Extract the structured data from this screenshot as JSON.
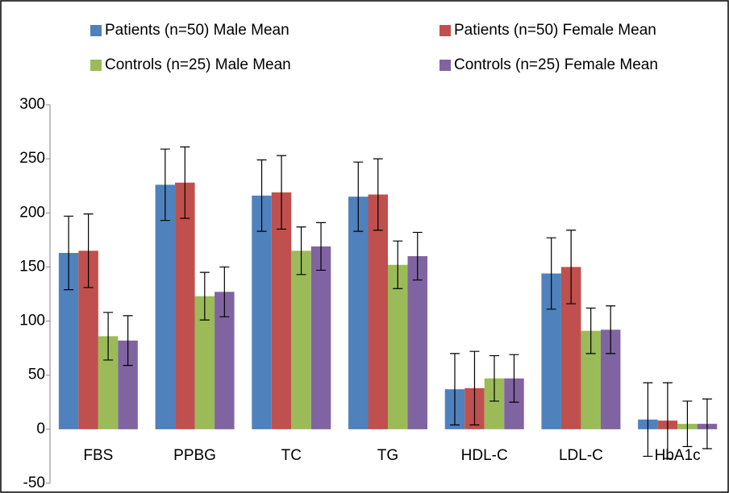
{
  "chart_data": {
    "type": "bar",
    "categories": [
      "FBS",
      "PPBG",
      "TC",
      "TG",
      "HDL-C",
      "LDL-C",
      "HbA1c"
    ],
    "series": [
      {
        "name": "Patients (n=50)  Male  Mean",
        "color": "#4f81bd",
        "values": [
          163,
          226,
          216,
          215,
          37,
          144,
          9
        ],
        "errors": [
          34,
          33,
          33,
          32,
          33,
          33,
          34
        ]
      },
      {
        "name": "Patients (n=50) Female  Mean",
        "color": "#c0504d",
        "values": [
          165,
          228,
          219,
          217,
          38,
          150,
          8
        ],
        "errors": [
          34,
          33,
          34,
          33,
          34,
          34,
          35
        ]
      },
      {
        "name": "Controls (n=25)  Male  Mean",
        "color": "#9bbb59",
        "values": [
          86,
          123,
          165,
          152,
          47,
          91,
          5
        ],
        "errors": [
          22,
          22,
          22,
          22,
          21,
          21,
          21
        ]
      },
      {
        "name": "Controls (n=25) Female  Mean",
        "color": "#8064a2",
        "values": [
          82,
          127,
          169,
          160,
          47,
          92,
          5
        ],
        "errors": [
          23,
          23,
          22,
          22,
          22,
          22,
          23
        ]
      }
    ],
    "ylim": [
      -50,
      300
    ],
    "yticks": [
      -50,
      0,
      50,
      100,
      150,
      200,
      250,
      300
    ],
    "grid": false
  }
}
